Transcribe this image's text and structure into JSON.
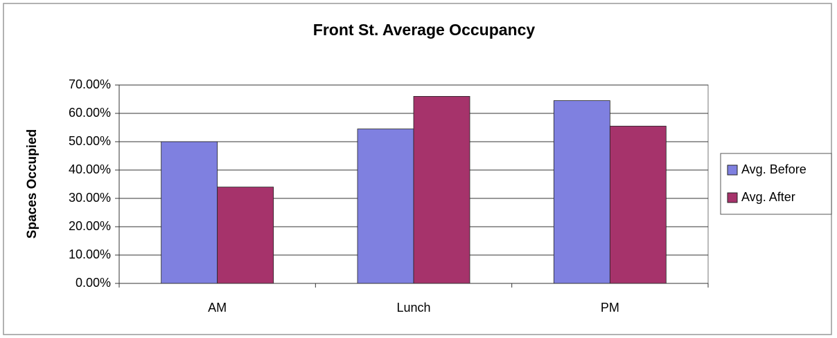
{
  "chart_data": {
    "type": "bar",
    "title": "Front St. Average Occupancy",
    "y_label": "Spaces Occupied",
    "categories": [
      "AM",
      "Lunch",
      "PM"
    ],
    "series": [
      {
        "name": "Avg. Before",
        "color": "#7f80e0",
        "values": [
          50,
          54.5,
          64.5
        ]
      },
      {
        "name": "Avg. After",
        "color": "#a6336b",
        "values": [
          34,
          66,
          55.5
        ]
      }
    ],
    "ylim": [
      0,
      70
    ],
    "yticks": [
      {
        "value": 0,
        "label": "0.00%"
      },
      {
        "value": 10,
        "label": "10.00%"
      },
      {
        "value": 20,
        "label": "20.00%"
      },
      {
        "value": 30,
        "label": "30.00%"
      },
      {
        "value": 40,
        "label": "40.00%"
      },
      {
        "value": 50,
        "label": "50.00%"
      },
      {
        "value": 60,
        "label": "60.00%"
      },
      {
        "value": 70,
        "label": "70.00%"
      }
    ],
    "grid": true,
    "legend": "right"
  }
}
